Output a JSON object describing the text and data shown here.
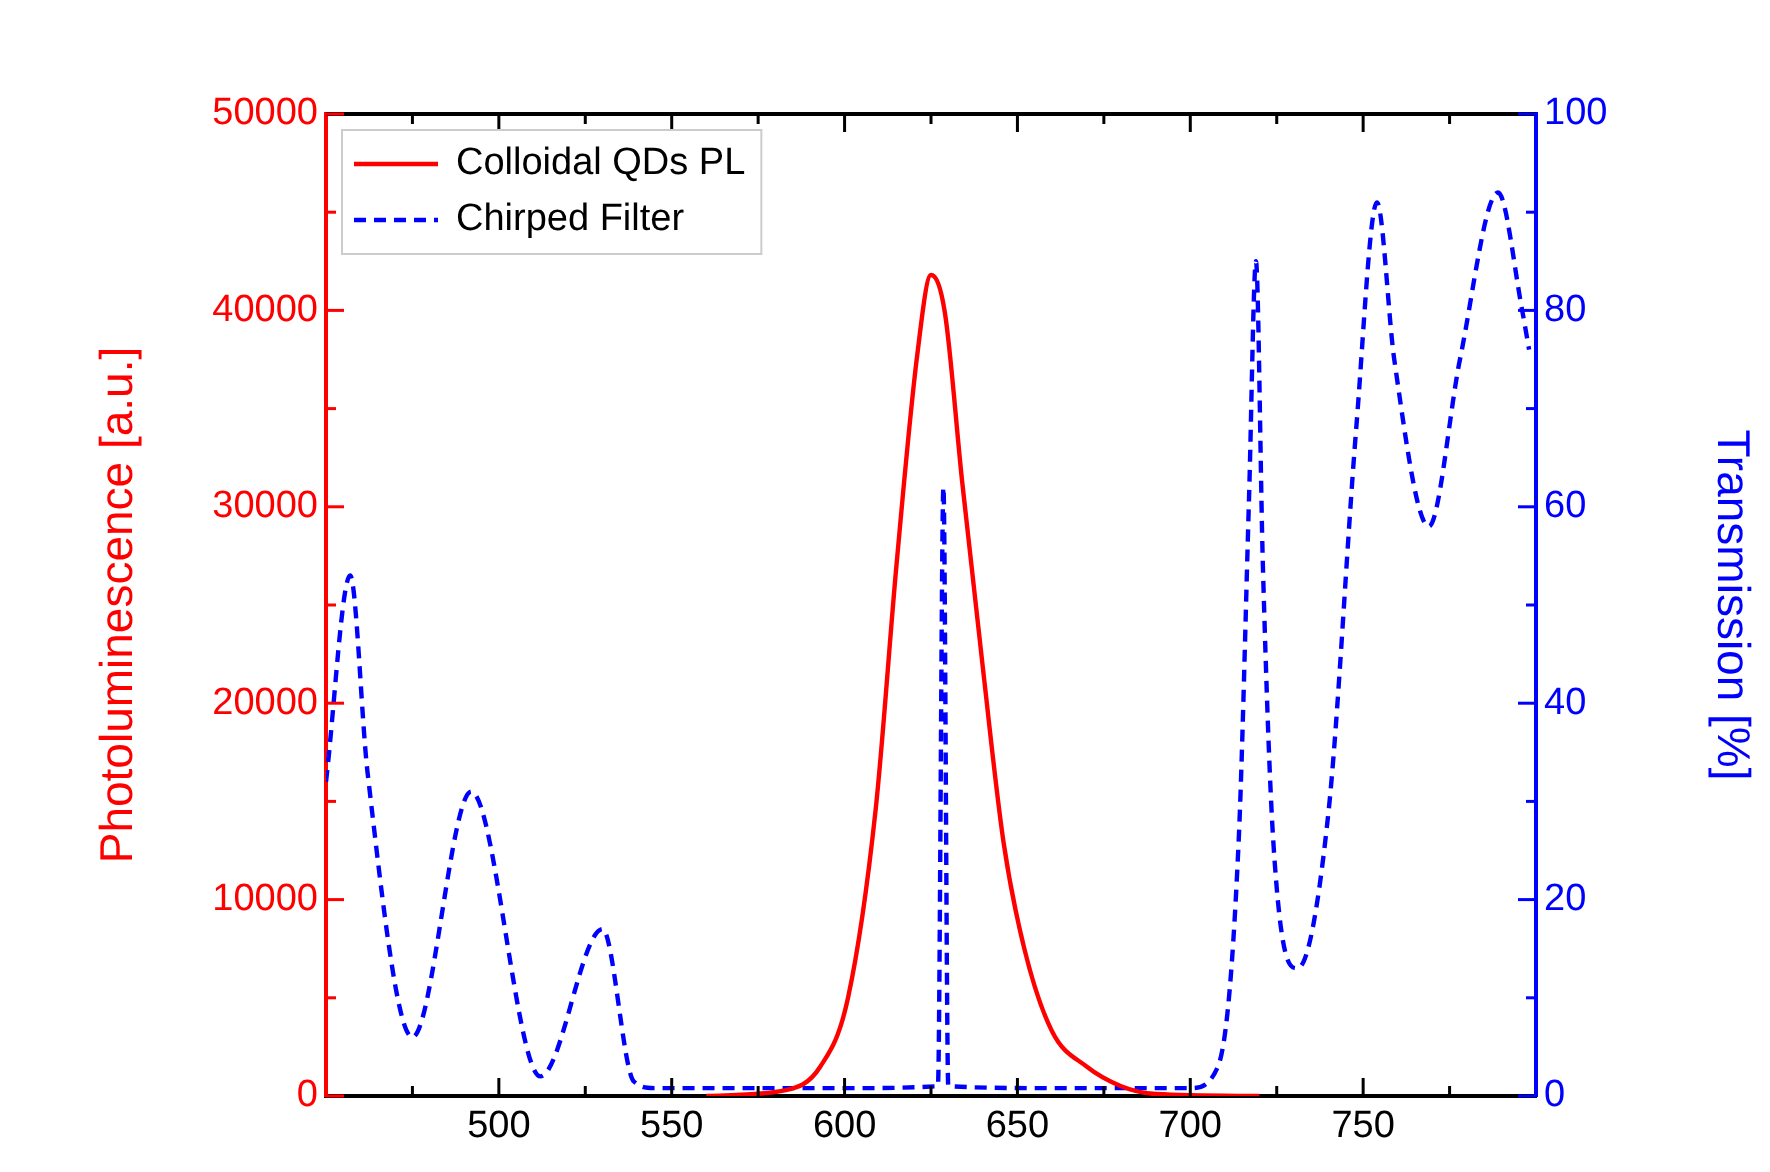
{
  "chart_data": {
    "type": "line",
    "xlabel": null,
    "ylabel": "Photoluminescence [a.u.]",
    "y2label": "Transmission [%]",
    "xlim": [
      450,
      800
    ],
    "xticks": [
      {
        "value": 475,
        "label": null
      },
      500,
      {
        "value": 525,
        "label": null
      },
      550,
      {
        "value": 575,
        "label": null
      },
      600,
      {
        "value": 625,
        "label": null
      },
      650,
      {
        "value": 675,
        "label": null
      },
      700,
      {
        "value": 725,
        "label": null
      },
      750,
      {
        "value": 775,
        "label": null
      }
    ],
    "ylim": [
      0,
      50000
    ],
    "yticks": [
      0,
      {
        "value": 5000,
        "label": null
      },
      10000,
      {
        "value": 15000,
        "label": null
      },
      20000,
      {
        "value": 25000,
        "label": null
      },
      30000,
      {
        "value": 35000,
        "label": null
      },
      40000,
      {
        "value": 45000,
        "label": null
      },
      50000
    ],
    "y2lim": [
      0,
      100
    ],
    "y2ticks": [
      0,
      {
        "value": 10,
        "label": null
      },
      20,
      {
        "value": 30,
        "label": null
      },
      40,
      {
        "value": 50,
        "label": null
      },
      60,
      {
        "value": 70,
        "label": null
      },
      80,
      {
        "value": 90,
        "label": null
      },
      100
    ],
    "grid": false,
    "legend": "top left",
    "marker": "none",
    "series": [
      {
        "name": "Colloidal QDs PL",
        "color": "#ff0000",
        "line_style": "solid",
        "x": [
          560,
          583,
          593,
          601,
          609,
          615,
          621,
          625,
          629,
          634,
          640,
          646,
          652,
          660,
          670,
          680,
          690,
          720
        ],
        "values": [
          0,
          300,
          1500,
          5000,
          14600,
          27000,
          37700,
          41800,
          39900,
          31300,
          21800,
          12900,
          7500,
          3300,
          1500,
          500,
          100,
          0
        ]
      },
      {
        "name": "Chirped Filter",
        "color": "#0000ff",
        "line_style": "dashed",
        "axis": "y2",
        "x": [
          450,
          457,
          462,
          475,
          492,
          512,
          530,
          539,
          545,
          600,
          627,
          628.6,
          630,
          660,
          700,
          708,
          714,
          717,
          719,
          721,
          724,
          731,
          740,
          748,
          754,
          759,
          769,
          778,
          789,
          796,
          798
        ],
        "values": [
          32,
          53,
          33,
          6,
          31,
          2,
          17,
          1.5,
          0.8,
          0.8,
          1,
          62,
          1,
          0.8,
          0.8,
          3,
          26,
          61,
          85,
          54,
          26,
          13,
          29,
          68,
          91,
          75,
          58,
          75,
          92,
          80,
          76
        ]
      }
    ]
  }
}
